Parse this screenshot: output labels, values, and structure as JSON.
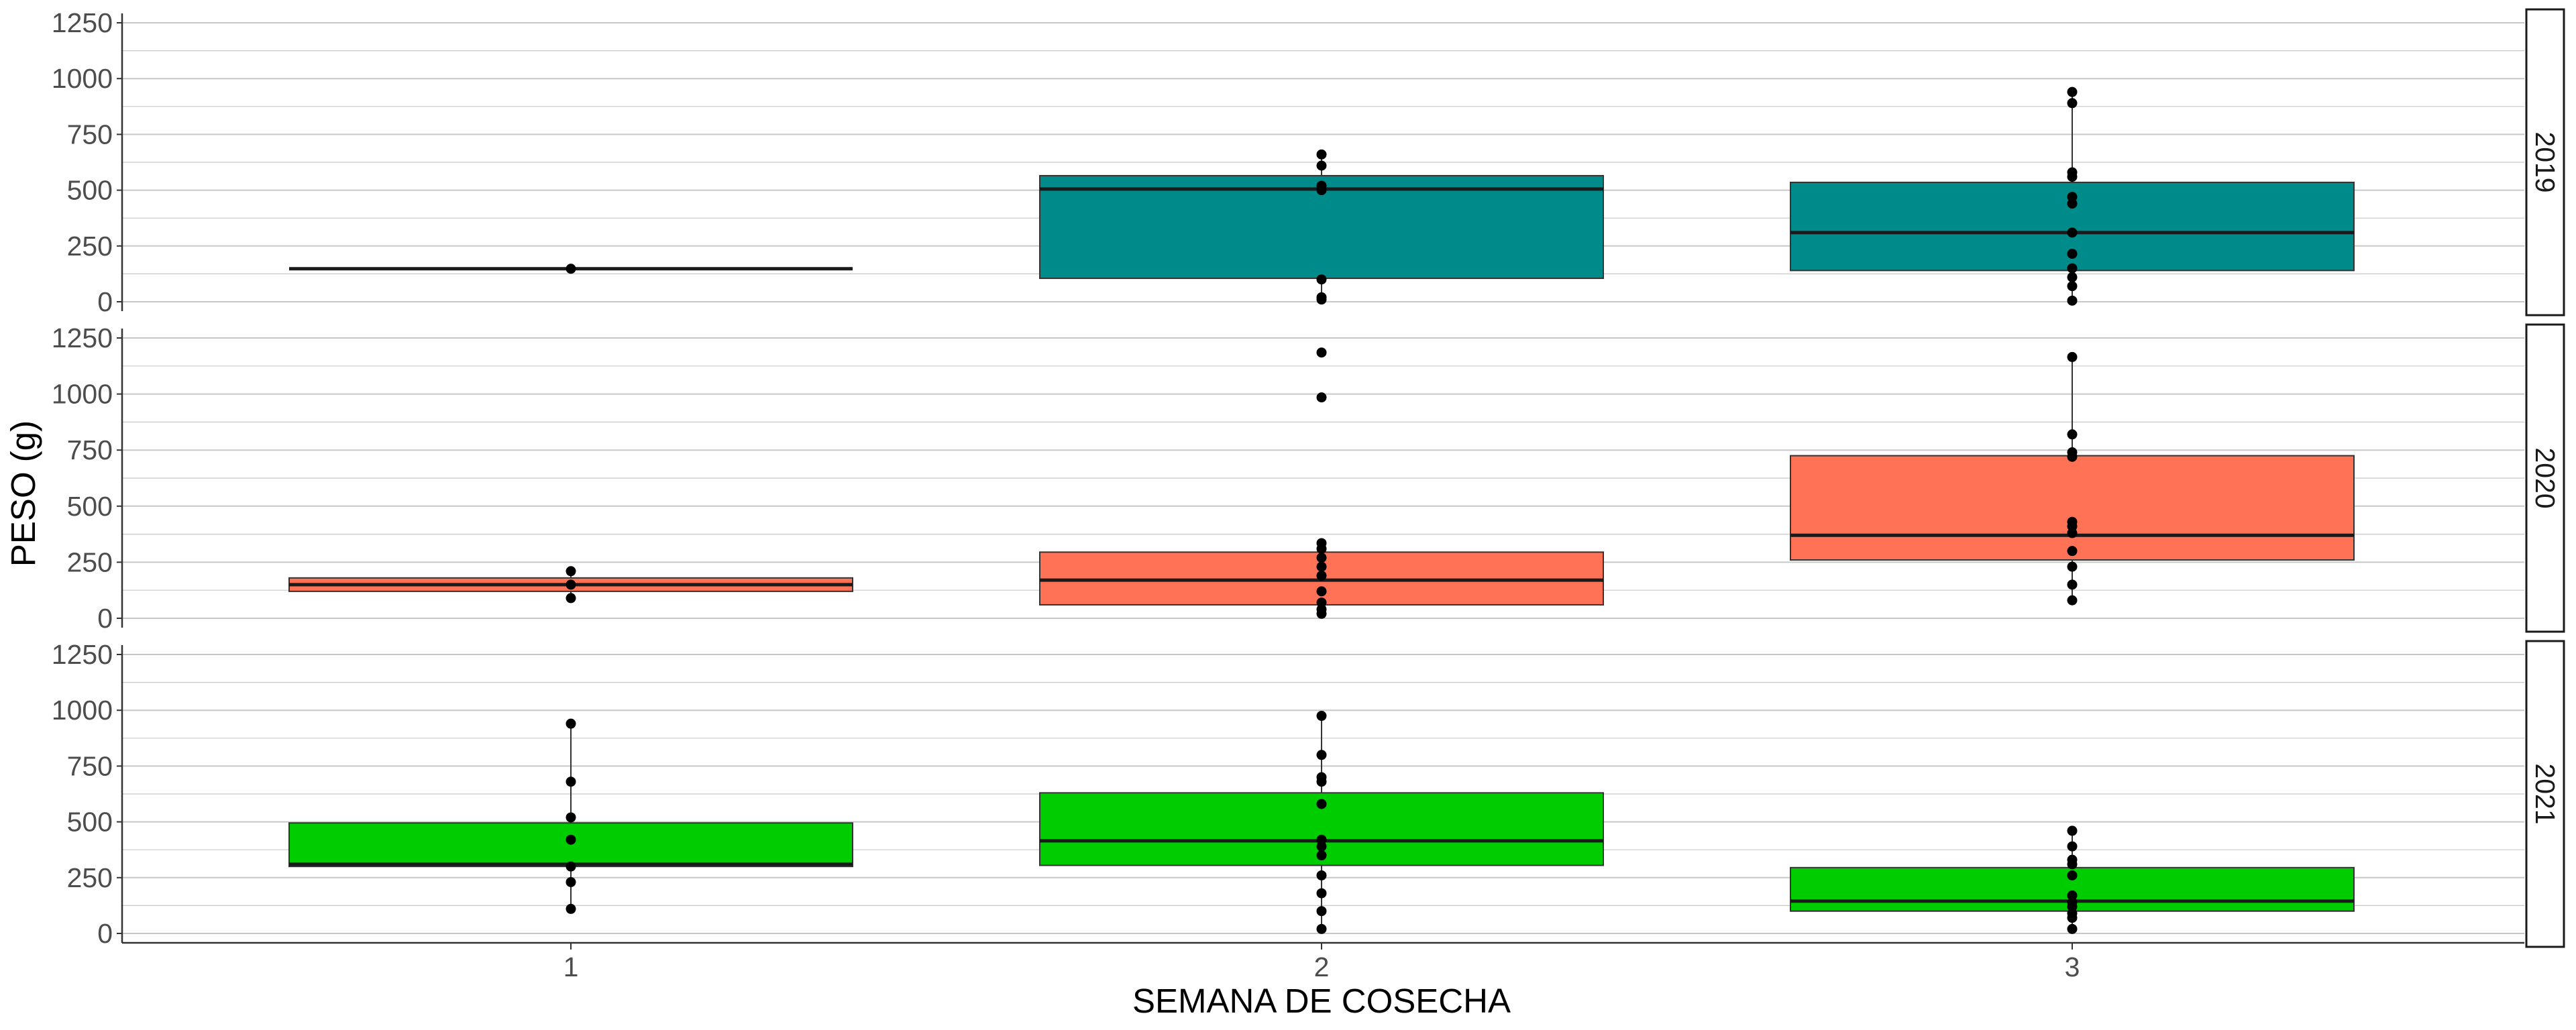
{
  "chart_data": {
    "type": "box",
    "title": "",
    "xlabel": "SEMANA DE COSECHA",
    "ylabel": "PESO (g)",
    "categories": [
      "1",
      "2",
      "3"
    ],
    "ylim": [
      0,
      1250
    ],
    "yticks": [
      "0",
      "250",
      "500",
      "750",
      "1000",
      "1250"
    ],
    "grid": "horizontal",
    "facets": [
      {
        "label": "2019",
        "color": "#008B8B",
        "boxes": [
          {
            "category": "1",
            "q1": 148,
            "median": 148,
            "q3": 148,
            "whisker_low": 148,
            "whisker_high": 148,
            "points": [
              148
            ]
          },
          {
            "category": "2",
            "q1": 105,
            "median": 505,
            "q3": 565,
            "whisker_low": 10,
            "whisker_high": 660,
            "points": [
              10,
              20,
              100,
              500,
              520,
              610,
              660
            ]
          },
          {
            "category": "3",
            "q1": 140,
            "median": 310,
            "q3": 535,
            "whisker_low": 5,
            "whisker_high": 940,
            "points": [
              5,
              70,
              110,
              150,
              215,
              310,
              440,
              470,
              560,
              580,
              890,
              940
            ]
          }
        ]
      },
      {
        "label": "2020",
        "color": "#FF7256",
        "boxes": [
          {
            "category": "1",
            "q1": 120,
            "median": 150,
            "q3": 180,
            "whisker_low": 90,
            "whisker_high": 210,
            "points": [
              90,
              150,
              210
            ]
          },
          {
            "category": "2",
            "q1": 60,
            "median": 170,
            "q3": 295,
            "whisker_low": 20,
            "whisker_high": 335,
            "points": [
              20,
              40,
              70,
              120,
              190,
              230,
              270,
              310,
              335,
              985,
              1185
            ]
          },
          {
            "category": "3",
            "q1": 260,
            "median": 370,
            "q3": 725,
            "whisker_low": 80,
            "whisker_high": 1165,
            "points": [
              80,
              150,
              230,
              300,
              380,
              410,
              430,
              720,
              740,
              820,
              1165
            ]
          }
        ]
      },
      {
        "label": "2021",
        "color": "#00CD00",
        "boxes": [
          {
            "category": "1",
            "q1": 300,
            "median": 310,
            "q3": 495,
            "whisker_low": 110,
            "whisker_high": 940,
            "points": [
              110,
              230,
              300,
              420,
              520,
              680,
              940
            ]
          },
          {
            "category": "2",
            "q1": 305,
            "median": 415,
            "q3": 630,
            "whisker_low": 20,
            "whisker_high": 975,
            "points": [
              20,
              100,
              180,
              260,
              350,
              390,
              420,
              580,
              680,
              700,
              800,
              975
            ]
          },
          {
            "category": "3",
            "q1": 100,
            "median": 145,
            "q3": 295,
            "whisker_low": 20,
            "whisker_high": 460,
            "points": [
              20,
              70,
              90,
              120,
              140,
              170,
              260,
              310,
              330,
              390,
              460
            ]
          }
        ]
      }
    ]
  }
}
